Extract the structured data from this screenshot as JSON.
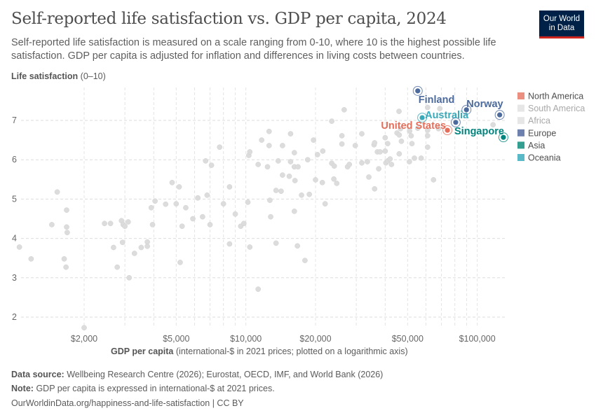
{
  "header": {
    "title": "Self-reported life satisfaction vs. GDP per capita, 2024",
    "subtitle": "Self-reported life satisfaction is measured on a scale ranging from 0-10, where 10 is the highest possible life satisfaction. GDP per capita is adjusted for inflation and differences in living costs between countries.",
    "logo_line1": "Our World",
    "logo_line2": "in Data"
  },
  "footer": {
    "source_label": "Data source:",
    "source_text": "Wellbeing Research Centre (2026); Eurostat, OECD, IMF, and World Bank (2026)",
    "note_label": "Note:",
    "note_text": "GDP per capita is expressed in international-$ at 2021 prices.",
    "link": "OurWorldinData.org/happiness-and-life-satisfaction | CC BY"
  },
  "colors": {
    "North America": "#e56e5a",
    "South America": "#e3e3e3",
    "Africa": "#e3e3e3",
    "Europe": "#4c6a9c",
    "Asia": "#00847e",
    "Oceania": "#38aaba",
    "unhighlighted": "#dcdcdc"
  },
  "chart_data": {
    "type": "scatter",
    "title": "Self-reported life satisfaction vs. GDP per capita, 2024",
    "xlabel_bold": "GDP per capita",
    "xlabel_rest": "(international-$ in 2021 prices; plotted on a logarithmic axis)",
    "ylabel_bold": "Life satisfaction",
    "ylabel_rest": "(0–10)",
    "xscale": "log",
    "xlim": [
      1000,
      132000
    ],
    "ylim": [
      1.7,
      7.8
    ],
    "grid": true,
    "legend_placement": "right",
    "x_ticks": [
      {
        "value": 2000,
        "label": "$2,000"
      },
      {
        "value": 5000,
        "label": "$5,000"
      },
      {
        "value": 10000,
        "label": "$10,000"
      },
      {
        "value": 20000,
        "label": "$20,000"
      },
      {
        "value": 50000,
        "label": "$50,000"
      },
      {
        "value": 100000,
        "label": "$100,000"
      }
    ],
    "y_ticks": [
      {
        "value": 2,
        "label": "2"
      },
      {
        "value": 3,
        "label": "3"
      },
      {
        "value": 4,
        "label": "4"
      },
      {
        "value": 5,
        "label": "5"
      },
      {
        "value": 6,
        "label": "6"
      },
      {
        "value": 7,
        "label": "7"
      }
    ],
    "legend": [
      {
        "label": "North America",
        "muted": false
      },
      {
        "label": "South America",
        "muted": true
      },
      {
        "label": "Africa",
        "muted": true
      },
      {
        "label": "Europe",
        "muted": false
      },
      {
        "label": "Asia",
        "muted": false
      },
      {
        "label": "Oceania",
        "muted": false
      }
    ],
    "highlighted": [
      {
        "name": "Finland",
        "region": "Europe",
        "x": 55300,
        "y": 7.75
      },
      {
        "name": "Norway",
        "region": "Europe",
        "x": 89800,
        "y": 7.27
      },
      {
        "name": "",
        "region": "Europe",
        "x": 125000,
        "y": 7.14
      },
      {
        "name": "",
        "region": "Europe",
        "x": 80700,
        "y": 6.95
      },
      {
        "name": "Australia",
        "region": "Oceania",
        "x": 57800,
        "y": 7.07
      },
      {
        "name": "United States",
        "region": "North America",
        "x": 74300,
        "y": 6.75
      },
      {
        "name": "Singapore",
        "region": "Asia",
        "x": 129700,
        "y": 6.57
      }
    ],
    "points": [
      [
        1050,
        3.78
      ],
      [
        1180,
        3.48
      ],
      [
        1530,
        5.18
      ],
      [
        1450,
        4.35
      ],
      [
        1680,
        4.72
      ],
      [
        1680,
        4.29
      ],
      [
        1690,
        4.15
      ],
      [
        1640,
        3.48
      ],
      [
        1670,
        3.27
      ],
      [
        2000,
        1.73
      ],
      [
        2450,
        4.38
      ],
      [
        2600,
        4.38
      ],
      [
        2900,
        4.45
      ],
      [
        2950,
        4.35
      ],
      [
        3000,
        4.31
      ],
      [
        3100,
        4.42
      ],
      [
        2680,
        3.77
      ],
      [
        2780,
        3.27
      ],
      [
        2930,
        3.9
      ],
      [
        3130,
        3.0
      ],
      [
        3300,
        3.62
      ],
      [
        3530,
        3.77
      ],
      [
        3750,
        3.91
      ],
      [
        3750,
        3.8
      ],
      [
        3900,
        4.78
      ],
      [
        4050,
        4.95
      ],
      [
        3950,
        4.35
      ],
      [
        4500,
        4.87
      ],
      [
        4800,
        5.42
      ],
      [
        5000,
        4.88
      ],
      [
        5150,
        5.31
      ],
      [
        5200,
        3.39
      ],
      [
        5300,
        4.31
      ],
      [
        5500,
        4.78
      ],
      [
        5900,
        4.5
      ],
      [
        6200,
        5.03
      ],
      [
        6500,
        4.55
      ],
      [
        6700,
        5.97
      ],
      [
        6800,
        5.1
      ],
      [
        7000,
        4.35
      ],
      [
        7100,
        5.86
      ],
      [
        7700,
        6.32
      ],
      [
        8000,
        4.88
      ],
      [
        8500,
        5.31
      ],
      [
        8500,
        3.86
      ],
      [
        9000,
        4.62
      ],
      [
        9500,
        4.31
      ],
      [
        9800,
        4.38
      ],
      [
        10200,
        4.92
      ],
      [
        10300,
        6.11
      ],
      [
        10400,
        6.2
      ],
      [
        10400,
        3.78
      ],
      [
        11300,
        5.88
      ],
      [
        11300,
        2.71
      ],
      [
        11700,
        6.5
      ],
      [
        12400,
        5.82
      ],
      [
        12600,
        6.72
      ],
      [
        12600,
        6.36
      ],
      [
        12700,
        4.97
      ],
      [
        12800,
        4.55
      ],
      [
        13500,
        5.22
      ],
      [
        13500,
        3.88
      ],
      [
        13800,
        5.97
      ],
      [
        14200,
        5.2
      ],
      [
        14400,
        6.36
      ],
      [
        14400,
        5.61
      ],
      [
        15400,
        5.58
      ],
      [
        15600,
        6.66
      ],
      [
        15600,
        5.95
      ],
      [
        16200,
        6.18
      ],
      [
        16200,
        5.82
      ],
      [
        16200,
        4.69
      ],
      [
        16300,
        5.47
      ],
      [
        16700,
        3.81
      ],
      [
        16800,
        5.82
      ],
      [
        17400,
        5.1
      ],
      [
        18000,
        3.44
      ],
      [
        18500,
        6.0
      ],
      [
        18800,
        5.12
      ],
      [
        19600,
        6.5
      ],
      [
        20000,
        5.49
      ],
      [
        20400,
        6.13
      ],
      [
        21400,
        5.42
      ],
      [
        21500,
        6.22
      ],
      [
        22000,
        4.88
      ],
      [
        23500,
        6.98
      ],
      [
        23500,
        5.91
      ],
      [
        24000,
        5.51
      ],
      [
        24100,
        5.84
      ],
      [
        24700,
        5.4
      ],
      [
        26000,
        6.61
      ],
      [
        26000,
        6.4
      ],
      [
        26600,
        7.27
      ],
      [
        27500,
        5.82
      ],
      [
        28000,
        5.88
      ],
      [
        29700,
        6.36
      ],
      [
        31700,
        6.66
      ],
      [
        31700,
        5.92
      ],
      [
        33500,
        5.95
      ],
      [
        34000,
        5.56
      ],
      [
        35800,
        6.38
      ],
      [
        36000,
        6.43
      ],
      [
        36000,
        5.26
      ],
      [
        37000,
        6.2
      ],
      [
        37500,
        5.77
      ],
      [
        38000,
        6.2
      ],
      [
        40000,
        6.56
      ],
      [
        40000,
        6.22
      ],
      [
        40300,
        5.92
      ],
      [
        41000,
        6.41
      ],
      [
        41000,
        5.97
      ],
      [
        42000,
        6.02
      ],
      [
        42600,
        5.88
      ],
      [
        45000,
        6.68
      ],
      [
        45900,
        7.23
      ],
      [
        46000,
        6.63
      ],
      [
        46000,
        6.15
      ],
      [
        46600,
        6.79
      ],
      [
        47000,
        6.47
      ],
      [
        50900,
        5.95
      ],
      [
        51000,
        6.73
      ],
      [
        51800,
        6.61
      ],
      [
        52200,
        6.41
      ],
      [
        53500,
        6.04
      ],
      [
        55300,
        6.8
      ],
      [
        57200,
        6.04
      ],
      [
        61000,
        7.33
      ],
      [
        61000,
        6.75
      ],
      [
        61000,
        6.61
      ],
      [
        61000,
        6.32
      ],
      [
        64700,
        5.49
      ],
      [
        68000,
        6.79
      ],
      [
        68900,
        7.3
      ],
      [
        117000,
        6.89
      ]
    ]
  }
}
